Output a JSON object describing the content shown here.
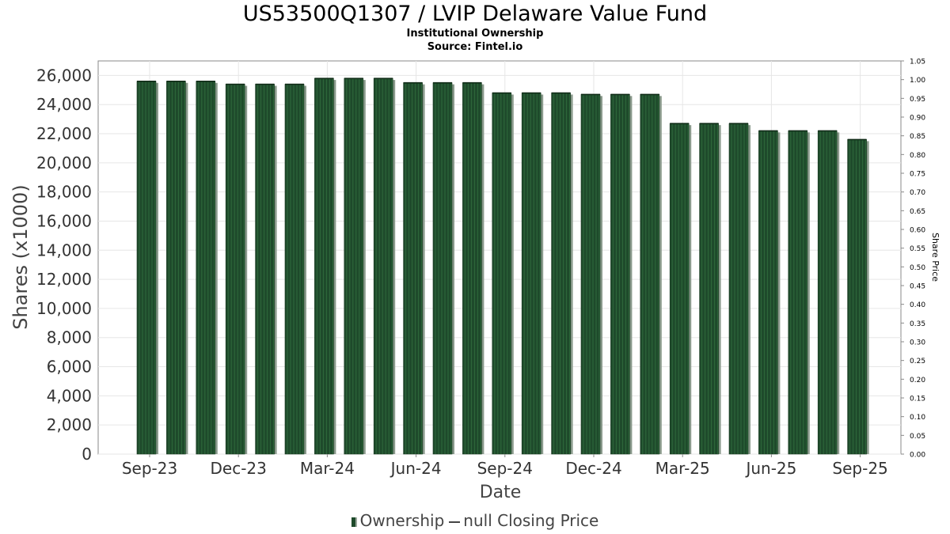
{
  "header": {
    "title": "US53500Q1307 / LVIP Delaware Value Fund",
    "subtitle": "Institutional Ownership",
    "source": "Source: Fintel.io"
  },
  "legend": {
    "ownership": "Ownership",
    "price": "null Closing Price"
  },
  "colors": {
    "bar": "#1e4a2b",
    "bar_stripe": "#2f6a3d",
    "bar_shadow": "#8a9a8c",
    "grid": "#e6e6e6",
    "axis": "#888888"
  },
  "chart_data": {
    "type": "bar",
    "title": "US53500Q1307 / LVIP Delaware Value Fund",
    "xlabel": "Date",
    "ylabel": "Shares (x1000)",
    "y2label": "Share Price",
    "ylim": [
      0,
      27000
    ],
    "y2lim": [
      0,
      1.05
    ],
    "yticks": [
      0,
      2000,
      4000,
      6000,
      8000,
      10000,
      12000,
      14000,
      16000,
      18000,
      20000,
      22000,
      24000,
      26000
    ],
    "ytick_labels": [
      "0",
      "2,000",
      "4,000",
      "6,000",
      "8,000",
      "10,000",
      "12,000",
      "14,000",
      "16,000",
      "18,000",
      "20,000",
      "22,000",
      "24,000",
      "26,000"
    ],
    "y2ticks": [
      "0.00",
      "0.05",
      "0.10",
      "0.15",
      "0.20",
      "0.25",
      "0.30",
      "0.35",
      "0.40",
      "0.45",
      "0.50",
      "0.55",
      "0.60",
      "0.65",
      "0.70",
      "0.75",
      "0.80",
      "0.85",
      "0.90",
      "0.95",
      "1.00",
      "1.05"
    ],
    "xtick_labels": [
      "Sep-23",
      "Dec-23",
      "Mar-24",
      "Jun-24",
      "Sep-24",
      "Dec-24",
      "Mar-25",
      "Jun-25",
      "Sep-25"
    ],
    "xtick_bar_index": [
      0.5,
      3.5,
      6.5,
      9.5,
      12.5,
      15.5,
      18.5,
      21.5,
      24.5
    ],
    "grid": true,
    "legend_position": "bottom",
    "series": [
      {
        "name": "Ownership",
        "values": [
          25600,
          25600,
          25600,
          25400,
          25400,
          25400,
          25800,
          25800,
          25800,
          25500,
          25500,
          25500,
          24800,
          24800,
          24800,
          24700,
          24700,
          24700,
          22700,
          22700,
          22700,
          22200,
          22200,
          22200,
          21600
        ]
      },
      {
        "name": "null Closing Price",
        "values": []
      }
    ]
  }
}
